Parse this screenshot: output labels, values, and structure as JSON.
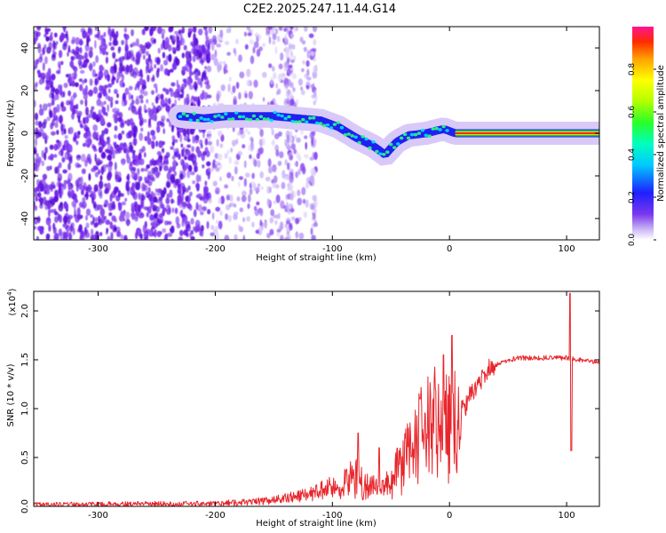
{
  "figure_title": "C2E2.2025.247.11.44.G14",
  "chart_data": [
    {
      "type": "heatmap",
      "name": "spectrogram",
      "title": "C2E2.2025.247.11.44.G14",
      "xlabel": "Height of straight line (km)",
      "ylabel": "Frequency (Hz)",
      "xlim": [
        -355,
        128
      ],
      "ylim": [
        -50,
        50
      ],
      "xticks": [
        -300,
        -200,
        -100,
        0,
        100
      ],
      "xtick_labels": [
        "-300",
        "-200",
        "-100",
        "0",
        "100"
      ],
      "yticks": [
        -40,
        -20,
        0,
        20,
        40
      ],
      "ytick_labels": [
        "-40",
        "-20",
        "0",
        "20",
        "40"
      ],
      "ridge": {
        "x": [
          -230,
          -210,
          -190,
          -170,
          -150,
          -130,
          -110,
          -95,
          -80,
          -65,
          -55,
          -45,
          -35,
          -20,
          -5,
          5,
          20,
          60,
          100,
          128
        ],
        "y": [
          8,
          7,
          8,
          8,
          8,
          7,
          6,
          3,
          -2,
          -6,
          -10,
          -4,
          -1,
          0,
          2,
          0,
          0,
          0,
          0,
          0
        ]
      },
      "colorbar": {
        "label": "Normalized spectral amplitude",
        "range": [
          0,
          1
        ],
        "ticks": [
          0.0,
          0.2,
          0.4,
          0.6,
          0.8
        ],
        "tick_labels": [
          "0.0",
          "0.2",
          "0.4",
          "0.6",
          "0.8"
        ]
      }
    },
    {
      "type": "line",
      "name": "snr",
      "xlabel": "Height of straight line (km)",
      "ylabel": "SNR (10 * v/v)",
      "multiplier": "(x10",
      "multiplier_exp": "4",
      "multiplier_close": ")",
      "xlim": [
        -355,
        128
      ],
      "ylim": [
        0,
        2.2
      ],
      "xticks": [
        -300,
        -200,
        -100,
        0,
        100
      ],
      "xtick_labels": [
        "-300",
        "-200",
        "-100",
        "0",
        "100"
      ],
      "yticks": [
        0.0,
        0.5,
        1.0,
        1.5,
        2.0
      ],
      "ytick_labels": [
        "0.0",
        "0.5",
        "1.0",
        "1.5",
        "2.0"
      ],
      "color": "#e8262c",
      "envelope": {
        "x": [
          -355,
          -200,
          -160,
          -140,
          -120,
          -100,
          -90,
          -80,
          -70,
          -60,
          -50,
          -40,
          -30,
          -20,
          -10,
          0,
          10,
          20,
          30,
          40,
          50,
          60,
          80,
          100,
          110,
          128
        ],
        "y": [
          0.02,
          0.03,
          0.05,
          0.08,
          0.12,
          0.2,
          0.3,
          0.35,
          0.25,
          0.2,
          0.3,
          0.55,
          0.8,
          0.95,
          1.05,
          1.0,
          0.95,
          1.2,
          1.35,
          1.45,
          1.5,
          1.52,
          1.52,
          1.52,
          1.5,
          1.48
        ]
      },
      "spikes": [
        {
          "x": -78,
          "y": 0.75
        },
        {
          "x": -60,
          "y": 0.6
        },
        {
          "x": -25,
          "y": 1.1
        },
        {
          "x": -5,
          "y": 1.55
        },
        {
          "x": 2,
          "y": 1.75
        },
        {
          "x": 103,
          "y": 2.18
        },
        {
          "x": 104,
          "y": 0.57
        }
      ]
    }
  ]
}
